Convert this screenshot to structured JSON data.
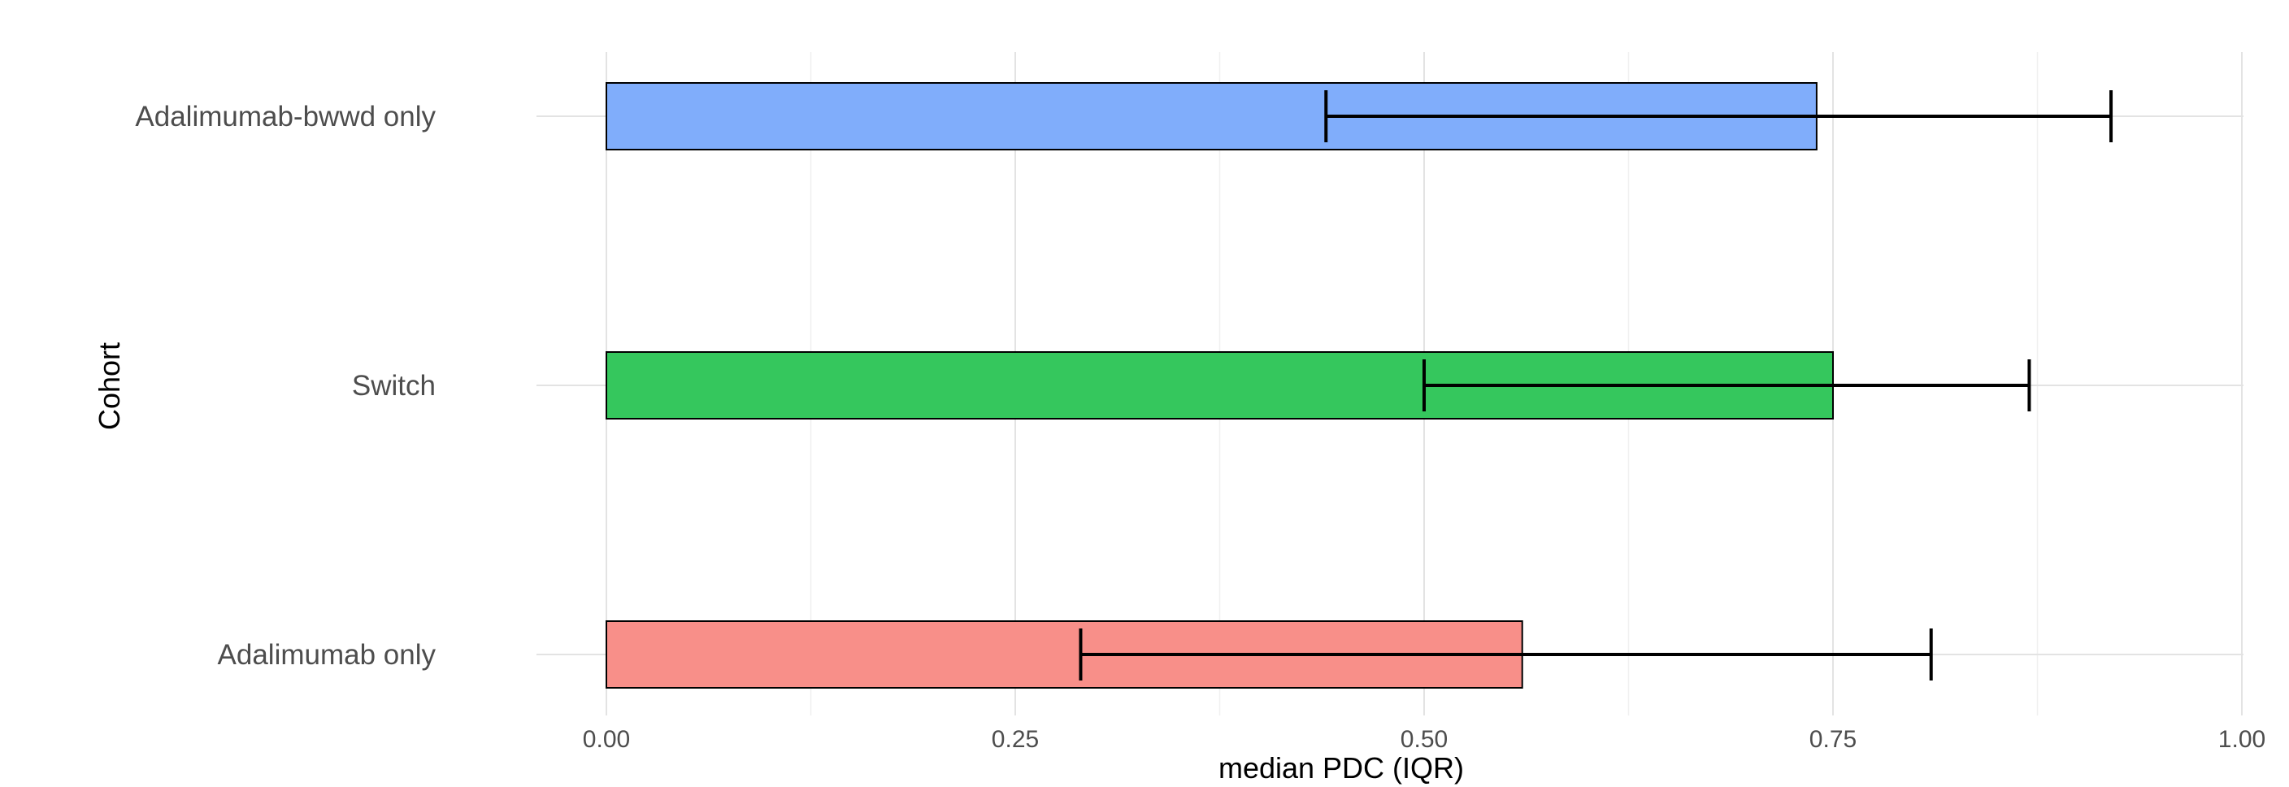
{
  "chart_data": {
    "type": "bar",
    "orientation": "horizontal",
    "xlabel": "median PDC (IQR)",
    "ylabel": "Cohort",
    "xlim": [
      0,
      1
    ],
    "x_ticks": [
      "0.00",
      "0.25",
      "0.50",
      "0.75",
      "1.00"
    ],
    "grid": true,
    "legend": "none",
    "categories": [
      "Adalimumab-bwwd only",
      "Switch",
      "Adalimumab only"
    ],
    "values": [
      0.74,
      0.75,
      0.56
    ],
    "iqr_low": [
      0.44,
      0.5,
      0.29
    ],
    "iqr_high": [
      0.92,
      0.87,
      0.81
    ],
    "colors": [
      "#80adfb",
      "#35c75d",
      "#f88f89"
    ]
  }
}
